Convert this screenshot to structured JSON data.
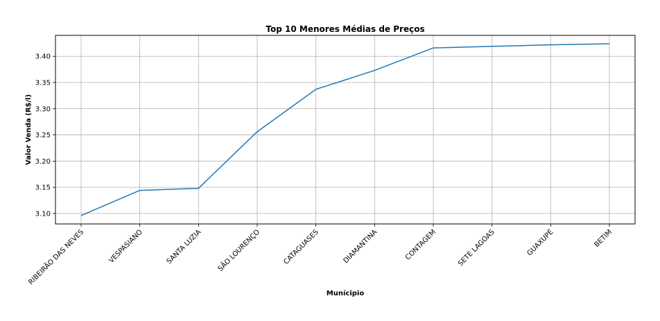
{
  "chart_data": {
    "type": "line",
    "title": "Top 10 Menores Médias de Preços",
    "xlabel": "Munícipio",
    "ylabel": "Valor Venda (R$/l)",
    "categories": [
      "RIBEIRÃO DAS NEVES",
      "VESPASIANO",
      "SANTA LUZIA",
      "SÃO LOURENÇO",
      "CATAGUASES",
      "DIAMANTINA",
      "CONTAGEM",
      "SETE LAGOAS",
      "GUAXUPÉ",
      "BETIM"
    ],
    "values": [
      3.096,
      3.144,
      3.148,
      3.256,
      3.337,
      3.373,
      3.416,
      3.419,
      3.422,
      3.424
    ],
    "ylim": [
      3.08,
      3.44
    ],
    "yticks": [
      "3.10",
      "3.15",
      "3.20",
      "3.25",
      "3.30",
      "3.35",
      "3.40"
    ],
    "grid": true,
    "line_color": "#1f77b4"
  }
}
